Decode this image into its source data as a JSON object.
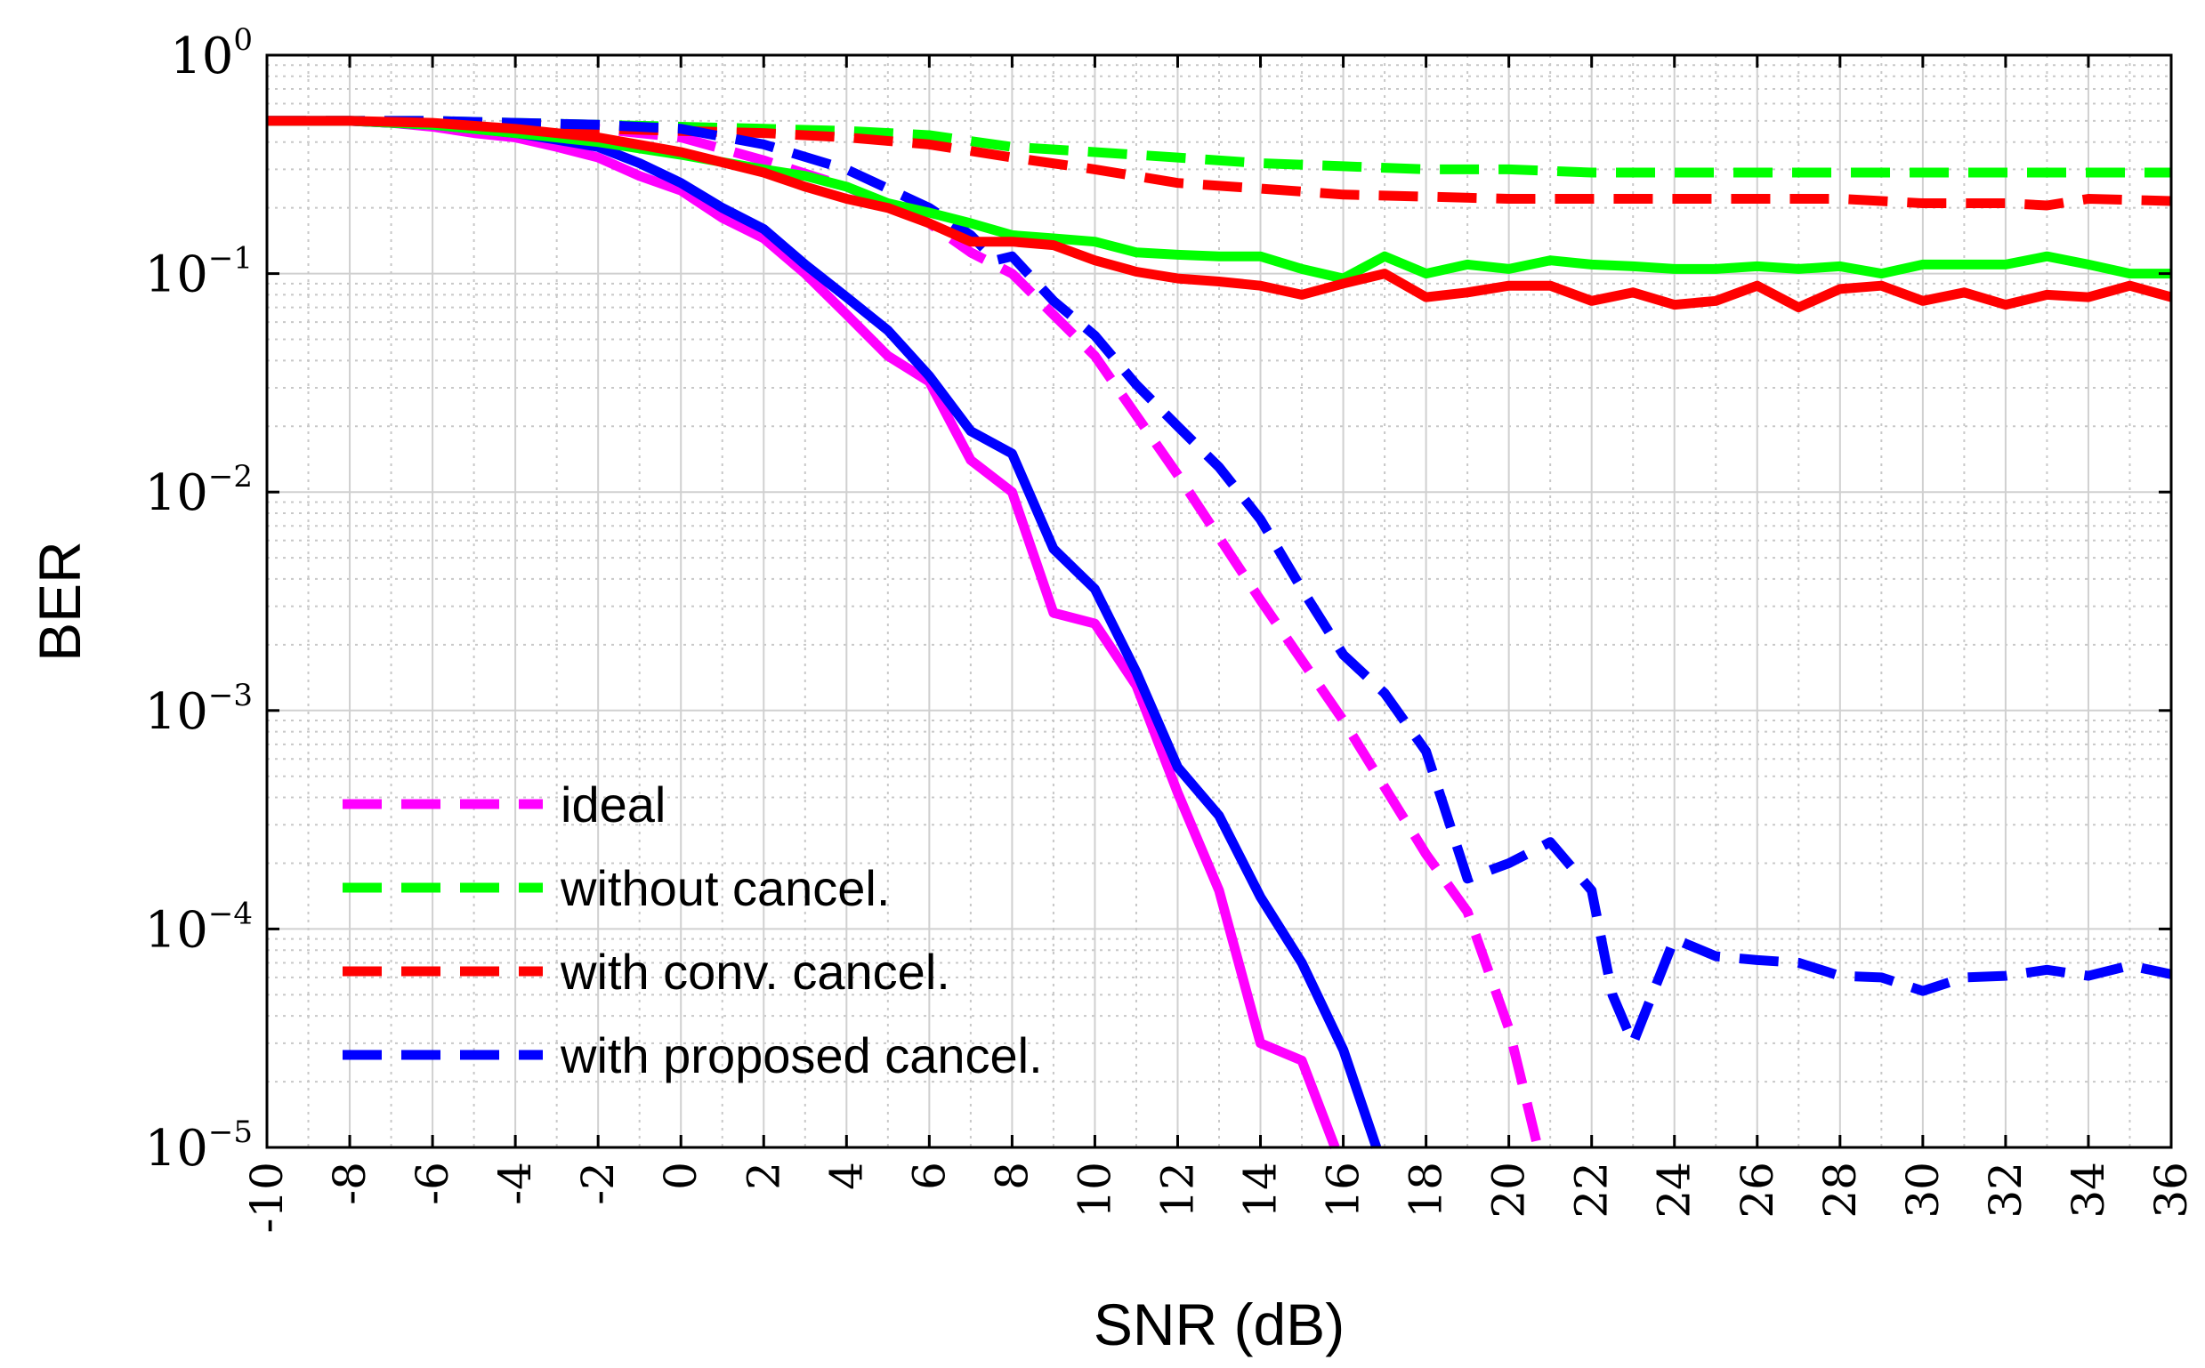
{
  "chart_data": {
    "type": "line",
    "title": "",
    "xlabel": "SNR (dB)",
    "ylabel": "BER",
    "xscale": "linear",
    "yscale": "log",
    "xlim": [
      -10,
      36
    ],
    "ylim": [
      1e-05,
      1
    ],
    "grid": true,
    "minor_grid": true,
    "legend_location": "lower-left",
    "x_ticks": [
      -10,
      -8,
      -6,
      -4,
      -2,
      0,
      2,
      4,
      6,
      8,
      10,
      12,
      14,
      16,
      18,
      20,
      22,
      24,
      26,
      28,
      30,
      32,
      34,
      36
    ],
    "x_tick_labels": [
      "-10",
      "-8",
      "-6",
      "-4",
      "-2",
      "0",
      "2",
      "4",
      "6",
      "8",
      "10",
      "12",
      "14",
      "16",
      "18",
      "20",
      "22",
      "24",
      "26",
      "28",
      "30",
      "32",
      "34",
      "36"
    ],
    "y_ticks": [
      {
        "value": 1,
        "base": "10",
        "exp": "0"
      },
      {
        "value": 0.1,
        "base": "10",
        "exp": "−1"
      },
      {
        "value": 0.01,
        "base": "10",
        "exp": "−2"
      },
      {
        "value": 0.001,
        "base": "10",
        "exp": "−3"
      },
      {
        "value": 0.0001,
        "base": "10",
        "exp": "−4"
      },
      {
        "value": 1e-05,
        "base": "10",
        "exp": "−5"
      }
    ],
    "legend": [
      {
        "label": "ideal",
        "color": "#ff00ff"
      },
      {
        "label": "without cancel.",
        "color": "#00ff00"
      },
      {
        "label": "with conv. cancel.",
        "color": "#ff0000"
      },
      {
        "label": "with proposed cancel.",
        "color": "#0000ff"
      }
    ],
    "series": [
      {
        "name": "ideal (dashed)",
        "color": "#ff00ff",
        "dash": true,
        "x": [
          -10,
          -8,
          -6,
          -4,
          -2,
          0,
          2,
          4,
          6,
          7,
          8,
          10,
          12,
          14,
          16,
          18,
          19,
          20,
          20.7
        ],
        "y": [
          0.5,
          0.5,
          0.49,
          0.48,
          0.46,
          0.42,
          0.33,
          0.25,
          0.17,
          0.125,
          0.1,
          0.042,
          0.012,
          0.0032,
          0.0009,
          0.00022,
          0.00012,
          3.5e-05,
          1e-05
        ]
      },
      {
        "name": "without cancel. (dashed)",
        "color": "#00ff00",
        "dash": true,
        "x": [
          -10,
          -8,
          -6,
          -4,
          -2,
          0,
          2,
          4,
          6,
          8,
          10,
          12,
          14,
          16,
          18,
          20,
          22,
          24,
          26,
          28,
          30,
          32,
          34,
          36
        ],
        "y": [
          0.5,
          0.5,
          0.5,
          0.49,
          0.48,
          0.47,
          0.46,
          0.45,
          0.43,
          0.38,
          0.36,
          0.34,
          0.32,
          0.31,
          0.3,
          0.3,
          0.29,
          0.29,
          0.29,
          0.29,
          0.29,
          0.29,
          0.29,
          0.29
        ]
      },
      {
        "name": "with conv. cancel. (dashed)",
        "color": "#ff0000",
        "dash": true,
        "x": [
          -10,
          -8,
          -6,
          -4,
          -2,
          0,
          2,
          4,
          6,
          8,
          10,
          12,
          14,
          16,
          18,
          20,
          22,
          24,
          26,
          28,
          30,
          32,
          33,
          34,
          36
        ],
        "y": [
          0.5,
          0.5,
          0.49,
          0.48,
          0.46,
          0.45,
          0.44,
          0.42,
          0.39,
          0.34,
          0.3,
          0.26,
          0.245,
          0.23,
          0.225,
          0.22,
          0.22,
          0.22,
          0.22,
          0.22,
          0.21,
          0.21,
          0.205,
          0.22,
          0.215
        ]
      },
      {
        "name": "with proposed cancel. (dashed)",
        "color": "#0000ff",
        "dash": true,
        "x": [
          -10,
          -8,
          -6,
          -4,
          -2,
          0,
          2,
          4,
          6,
          7,
          7.6,
          8,
          9,
          10,
          11,
          12,
          13,
          14,
          15,
          16,
          17,
          18,
          19,
          20,
          21,
          22,
          22.5,
          23,
          24,
          25,
          26,
          27,
          28,
          29,
          30,
          31,
          32,
          33,
          34,
          35,
          36
        ],
        "y": [
          0.5,
          0.5,
          0.5,
          0.49,
          0.48,
          0.46,
          0.39,
          0.3,
          0.2,
          0.15,
          0.115,
          0.12,
          0.075,
          0.052,
          0.031,
          0.02,
          0.013,
          0.0075,
          0.0036,
          0.0018,
          0.0012,
          0.00065,
          0.00017,
          0.0002,
          0.00025,
          0.00015,
          5e-05,
          3e-05,
          9e-05,
          7.5e-05,
          7.2e-05,
          7e-05,
          6.1e-05,
          6e-05,
          5.2e-05,
          6e-05,
          6.1e-05,
          6.5e-05,
          6.1e-05,
          6.8e-05,
          6.2e-05
        ]
      },
      {
        "name": "ideal (solid)",
        "color": "#ff00ff",
        "dash": false,
        "x": [
          -10,
          -8,
          -7,
          -6,
          -5,
          -4,
          -3,
          -2,
          -1,
          0,
          1,
          2,
          3,
          4,
          5,
          6,
          7,
          8,
          9,
          10,
          11,
          12,
          13,
          14,
          15,
          15.8
        ],
        "y": [
          0.5,
          0.5,
          0.49,
          0.47,
          0.44,
          0.42,
          0.38,
          0.34,
          0.28,
          0.24,
          0.18,
          0.145,
          0.1,
          0.065,
          0.042,
          0.032,
          0.014,
          0.01,
          0.0028,
          0.0025,
          0.0013,
          0.00042,
          0.00015,
          3e-05,
          2.5e-05,
          1e-05
        ]
      },
      {
        "name": "with proposed cancel. (solid)",
        "color": "#0000ff",
        "dash": false,
        "x": [
          -10,
          -8,
          -7,
          -6,
          -5,
          -4,
          -3,
          -2,
          -1,
          0,
          1,
          2,
          3,
          4,
          5,
          6,
          7,
          8,
          9,
          10,
          11,
          12,
          13,
          14,
          15,
          16,
          16.8
        ],
        "y": [
          0.5,
          0.5,
          0.49,
          0.48,
          0.46,
          0.44,
          0.41,
          0.38,
          0.32,
          0.26,
          0.2,
          0.16,
          0.11,
          0.078,
          0.055,
          0.034,
          0.019,
          0.015,
          0.0055,
          0.0036,
          0.0015,
          0.00055,
          0.00033,
          0.00014,
          7e-05,
          2.8e-05,
          1e-05
        ]
      },
      {
        "name": "without cancel. (solid)",
        "color": "#00ff00",
        "dash": false,
        "x": [
          -10,
          -8,
          -6,
          -4,
          -2,
          0,
          2,
          3,
          4,
          5,
          6,
          7,
          8,
          9,
          10,
          11,
          12,
          13,
          14,
          15,
          16,
          17,
          18,
          19,
          20,
          21,
          22,
          23,
          24,
          25,
          26,
          27,
          28,
          29,
          30,
          31,
          32,
          33,
          34,
          35,
          36
        ],
        "y": [
          0.5,
          0.5,
          0.48,
          0.44,
          0.4,
          0.35,
          0.3,
          0.28,
          0.25,
          0.21,
          0.19,
          0.17,
          0.15,
          0.145,
          0.14,
          0.125,
          0.122,
          0.12,
          0.12,
          0.105,
          0.095,
          0.12,
          0.1,
          0.11,
          0.105,
          0.115,
          0.11,
          0.108,
          0.105,
          0.105,
          0.108,
          0.105,
          0.108,
          0.1,
          0.11,
          0.11,
          0.11,
          0.12,
          0.11,
          0.1,
          0.1
        ]
      },
      {
        "name": "with conv. cancel. (solid)",
        "color": "#ff0000",
        "dash": false,
        "x": [
          -10,
          -8,
          -6,
          -4,
          -2,
          0,
          2,
          3,
          4,
          5,
          6,
          7,
          8,
          9,
          10,
          11,
          12,
          13,
          14,
          15,
          16,
          17,
          18,
          19,
          20,
          21,
          22,
          23,
          24,
          25,
          26,
          27,
          28,
          29,
          30,
          31,
          32,
          33,
          34,
          35,
          36
        ],
        "y": [
          0.5,
          0.5,
          0.49,
          0.46,
          0.42,
          0.36,
          0.29,
          0.25,
          0.22,
          0.2,
          0.17,
          0.14,
          0.14,
          0.135,
          0.115,
          0.102,
          0.095,
          0.092,
          0.088,
          0.08,
          0.09,
          0.1,
          0.078,
          0.082,
          0.088,
          0.088,
          0.075,
          0.082,
          0.072,
          0.075,
          0.088,
          0.07,
          0.085,
          0.088,
          0.075,
          0.082,
          0.072,
          0.08,
          0.078,
          0.088,
          0.078
        ]
      }
    ]
  }
}
